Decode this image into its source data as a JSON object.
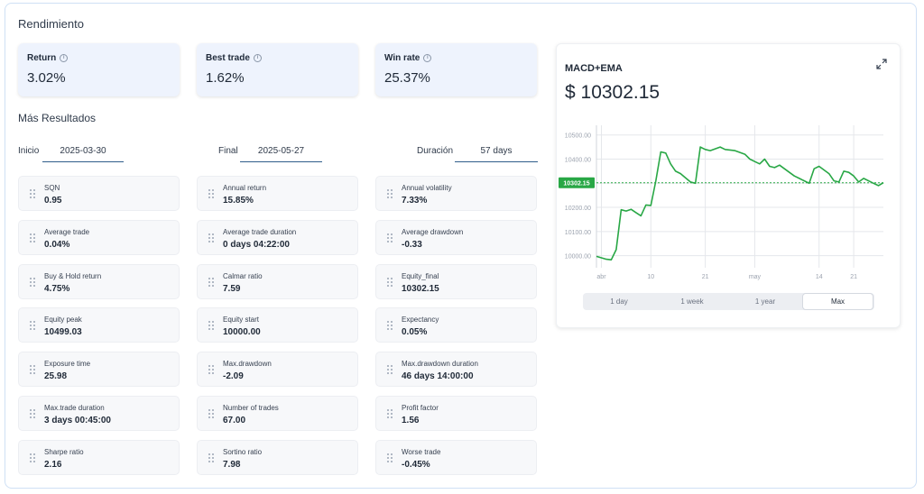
{
  "page_title": "Rendimiento",
  "kpis": [
    {
      "label": "Return",
      "value": "3.02%"
    },
    {
      "label": "Best trade",
      "value": "1.62%"
    },
    {
      "label": "Win rate",
      "value": "25.37%"
    }
  ],
  "section_title": "Más Resultados",
  "dates": {
    "start_label": "Inicio",
    "start_value": "2025-03-30",
    "end_label": "Final",
    "end_value": "2025-05-27",
    "duration_label": "Duración",
    "duration_value": "57 days"
  },
  "metrics": [
    {
      "label": "SQN",
      "value": "0.95"
    },
    {
      "label": "Annual return",
      "value": "15.85%"
    },
    {
      "label": "Annual volatility",
      "value": "7.33%"
    },
    {
      "label": "Average trade",
      "value": "0.04%"
    },
    {
      "label": "Average trade duration",
      "value": "0 days 04:22:00"
    },
    {
      "label": "Average drawdown",
      "value": "-0.33"
    },
    {
      "label": "Buy & Hold return",
      "value": "4.75%"
    },
    {
      "label": "Calmar ratio",
      "value": "7.59"
    },
    {
      "label": "Equity_final",
      "value": "10302.15"
    },
    {
      "label": "Equity peak",
      "value": "10499.03"
    },
    {
      "label": "Equity start",
      "value": "10000.00"
    },
    {
      "label": "Expectancy",
      "value": "0.05%"
    },
    {
      "label": "Exposure time",
      "value": "25.98"
    },
    {
      "label": "Max.drawdown",
      "value": "-2.09"
    },
    {
      "label": "Max.drawdown duration",
      "value": "46 days 14:00:00"
    },
    {
      "label": "Max.trade duration",
      "value": "3 days 00:45:00"
    },
    {
      "label": "Number of trades",
      "value": "67.00"
    },
    {
      "label": "Profit factor",
      "value": "1.56"
    },
    {
      "label": "Sharpe ratio",
      "value": "2.16"
    },
    {
      "label": "Sortino ratio",
      "value": "7.98"
    },
    {
      "label": "Worse trade",
      "value": "-0.45%"
    }
  ],
  "chart_panel": {
    "title": "MACD+EMA",
    "value": "$ 10302.15",
    "current_label": "10302.15",
    "expand_icon": "expand-icon",
    "tabs": [
      "1 day",
      "1 week",
      "1 year",
      "Max"
    ],
    "active_tab": "Max",
    "line_color": "#28a745"
  },
  "chart_data": {
    "type": "line",
    "x_tick_labels": [
      "abr",
      "10",
      "21",
      "may",
      "14",
      "21"
    ],
    "y_tick_labels": [
      "10500.00",
      "10400.00",
      "10300.00",
      "10200.00",
      "10100.00",
      "10000.00"
    ],
    "ylim": [
      9950,
      10540
    ],
    "grid": true,
    "reference_line": 10302.15,
    "series": [
      {
        "x": [
          "2025-03-30",
          "2025-04-01",
          "2025-04-02",
          "2025-04-03",
          "2025-04-04",
          "2025-04-05",
          "2025-04-06",
          "2025-04-07",
          "2025-04-08",
          "2025-04-09",
          "2025-04-10",
          "2025-04-11",
          "2025-04-12",
          "2025-04-13",
          "2025-04-14",
          "2025-04-15",
          "2025-04-16",
          "2025-04-18",
          "2025-04-19",
          "2025-04-20",
          "2025-04-21",
          "2025-04-22",
          "2025-04-24",
          "2025-04-25",
          "2025-04-27",
          "2025-04-29",
          "2025-04-30",
          "2025-05-01",
          "2025-05-02",
          "2025-05-03",
          "2025-05-04",
          "2025-05-05",
          "2025-05-06",
          "2025-05-08",
          "2025-05-09",
          "2025-05-10",
          "2025-05-11",
          "2025-05-12",
          "2025-05-13",
          "2025-05-14",
          "2025-05-16",
          "2025-05-17",
          "2025-05-18",
          "2025-05-19",
          "2025-05-20",
          "2025-05-21",
          "2025-05-22",
          "2025-05-23",
          "2025-05-25",
          "2025-05-26",
          "2025-05-27"
        ],
        "y": [
          9997,
          9985,
          9983,
          10025,
          10190,
          10185,
          10192,
          10178,
          10165,
          10210,
          10208,
          10310,
          10430,
          10425,
          10380,
          10350,
          10340,
          10305,
          10300,
          10450,
          10440,
          10435,
          10450,
          10440,
          10435,
          10420,
          10400,
          10390,
          10380,
          10400,
          10370,
          10365,
          10375,
          10345,
          10330,
          10320,
          10310,
          10300,
          10360,
          10370,
          10340,
          10310,
          10305,
          10350,
          10345,
          10330,
          10305,
          10320,
          10300,
          10290,
          10302
        ]
      }
    ]
  }
}
